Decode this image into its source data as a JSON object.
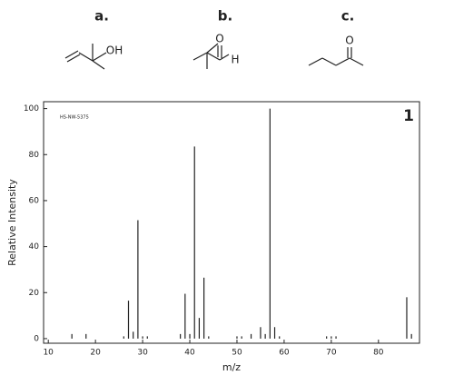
{
  "structures": [
    {
      "label": "a.",
      "atoms": [
        "OH"
      ]
    },
    {
      "label": "b.",
      "atoms": [
        "O",
        "H"
      ]
    },
    {
      "label": "c.",
      "atoms": [
        "O"
      ]
    }
  ],
  "chart_data": {
    "type": "stem",
    "code": "HS-NW-5375",
    "panel_label": "1",
    "x_label": "m/z",
    "y_label": "Relative Intensity",
    "x": [
      15,
      18,
      26,
      27,
      28,
      29,
      30,
      31,
      38,
      39,
      40,
      41,
      42,
      43,
      44,
      50,
      51,
      53,
      55,
      56,
      57,
      58,
      59,
      69,
      70,
      71,
      86,
      87
    ],
    "values": [
      2,
      2,
      1,
      16.5,
      3,
      51.5,
      1,
      1,
      2,
      19.5,
      2,
      83.5,
      9,
      26.5,
      1,
      1,
      1,
      2,
      5,
      2,
      100,
      5,
      1,
      1,
      1,
      1,
      18,
      2
    ],
    "color": "#222222",
    "xlim": [
      9,
      88.7
    ],
    "ylim": [
      -2,
      103
    ],
    "xticks": [
      10,
      20,
      30,
      40,
      50,
      60,
      70,
      80
    ],
    "yticks": [
      0,
      20,
      40,
      60,
      80,
      100
    ]
  }
}
